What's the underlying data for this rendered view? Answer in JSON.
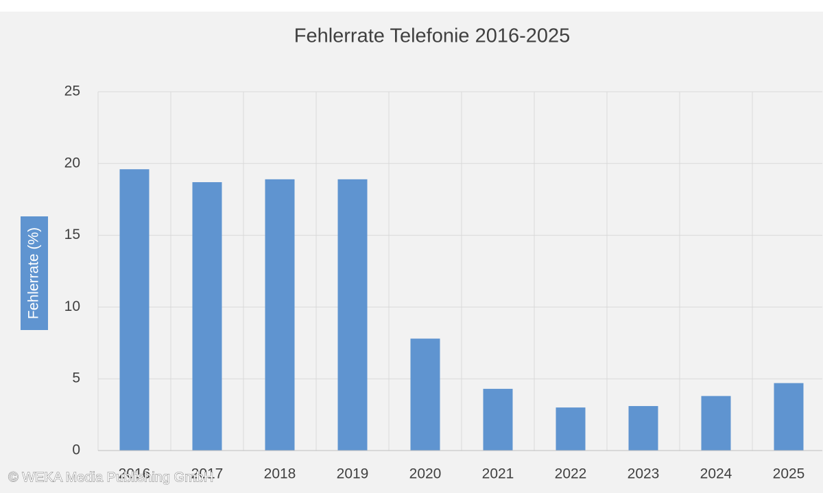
{
  "chart_data": {
    "type": "bar",
    "title": "Fehlerrate Telefonie 2016-2025",
    "y_label": "Fehlerrate (%)",
    "categories": [
      "2016",
      "2017",
      "2018",
      "2019",
      "2020",
      "2021",
      "2022",
      "2023",
      "2024",
      "2025"
    ],
    "values": [
      19.6,
      18.7,
      18.9,
      18.9,
      7.8,
      4.3,
      3.0,
      3.1,
      3.8,
      4.7
    ],
    "color": "#5f94d0",
    "ylim": [
      0,
      25
    ],
    "yticks": [
      0,
      5,
      10,
      15,
      20,
      25
    ],
    "grid": true
  },
  "watermark": "© WEKA Media Publishing GmbH"
}
